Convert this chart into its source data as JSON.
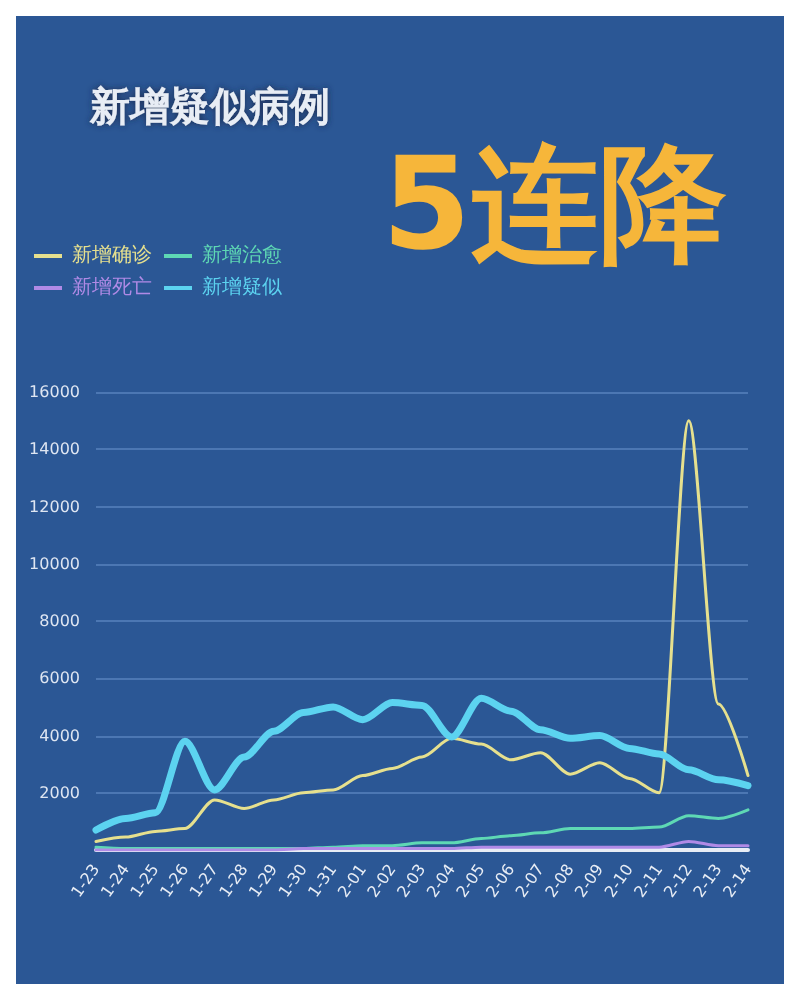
{
  "chart_data": {
    "type": "line",
    "title": "新增疑似病例",
    "subtitle": "5连降",
    "categories": [
      "1-23",
      "1-24",
      "1-25",
      "1-26",
      "1-27",
      "1-28",
      "1-29",
      "1-30",
      "1-31",
      "2-01",
      "2-02",
      "2-03",
      "2-04",
      "2-05",
      "2-06",
      "2-07",
      "2-08",
      "2-09",
      "2-10",
      "2-11",
      "2-12",
      "2-13",
      "2-14"
    ],
    "series": [
      {
        "name": "新增确诊",
        "color": "#e6e08e",
        "values": [
          300,
          450,
          650,
          750,
          1750,
          1450,
          1750,
          2000,
          2100,
          2600,
          2850,
          3250,
          3900,
          3700,
          3150,
          3400,
          2650,
          3050,
          2500,
          2000,
          15000,
          5100,
          2600
        ]
      },
      {
        "name": "新增治愈",
        "color": "#5ed8b4",
        "values": [
          100,
          50,
          50,
          50,
          50,
          50,
          50,
          50,
          100,
          150,
          150,
          250,
          250,
          400,
          500,
          600,
          750,
          750,
          750,
          800,
          1200,
          1100,
          1400
        ]
      },
      {
        "name": "新增死亡",
        "color": "#b08ae6",
        "values": [
          0,
          0,
          0,
          0,
          0,
          0,
          0,
          50,
          50,
          50,
          50,
          50,
          50,
          100,
          100,
          100,
          100,
          100,
          100,
          100,
          300,
          150,
          150
        ]
      },
      {
        "name": "新增疑似",
        "color": "#5cd3f0",
        "values": [
          700,
          1100,
          1300,
          3800,
          2100,
          3250,
          4150,
          4800,
          5000,
          4550,
          5150,
          5050,
          3950,
          5300,
          4850,
          4200,
          3900,
          4000,
          3550,
          3350,
          2800,
          2450,
          2250
        ]
      }
    ],
    "ylim": [
      0,
      16000
    ],
    "yticks": [
      {
        "value": 0,
        "label": null
      },
      2000,
      4000,
      6000,
      8000,
      10000,
      12000,
      14000,
      16000
    ],
    "grid": "y",
    "legend": "top left",
    "marker": "none",
    "line_style": "solid"
  }
}
